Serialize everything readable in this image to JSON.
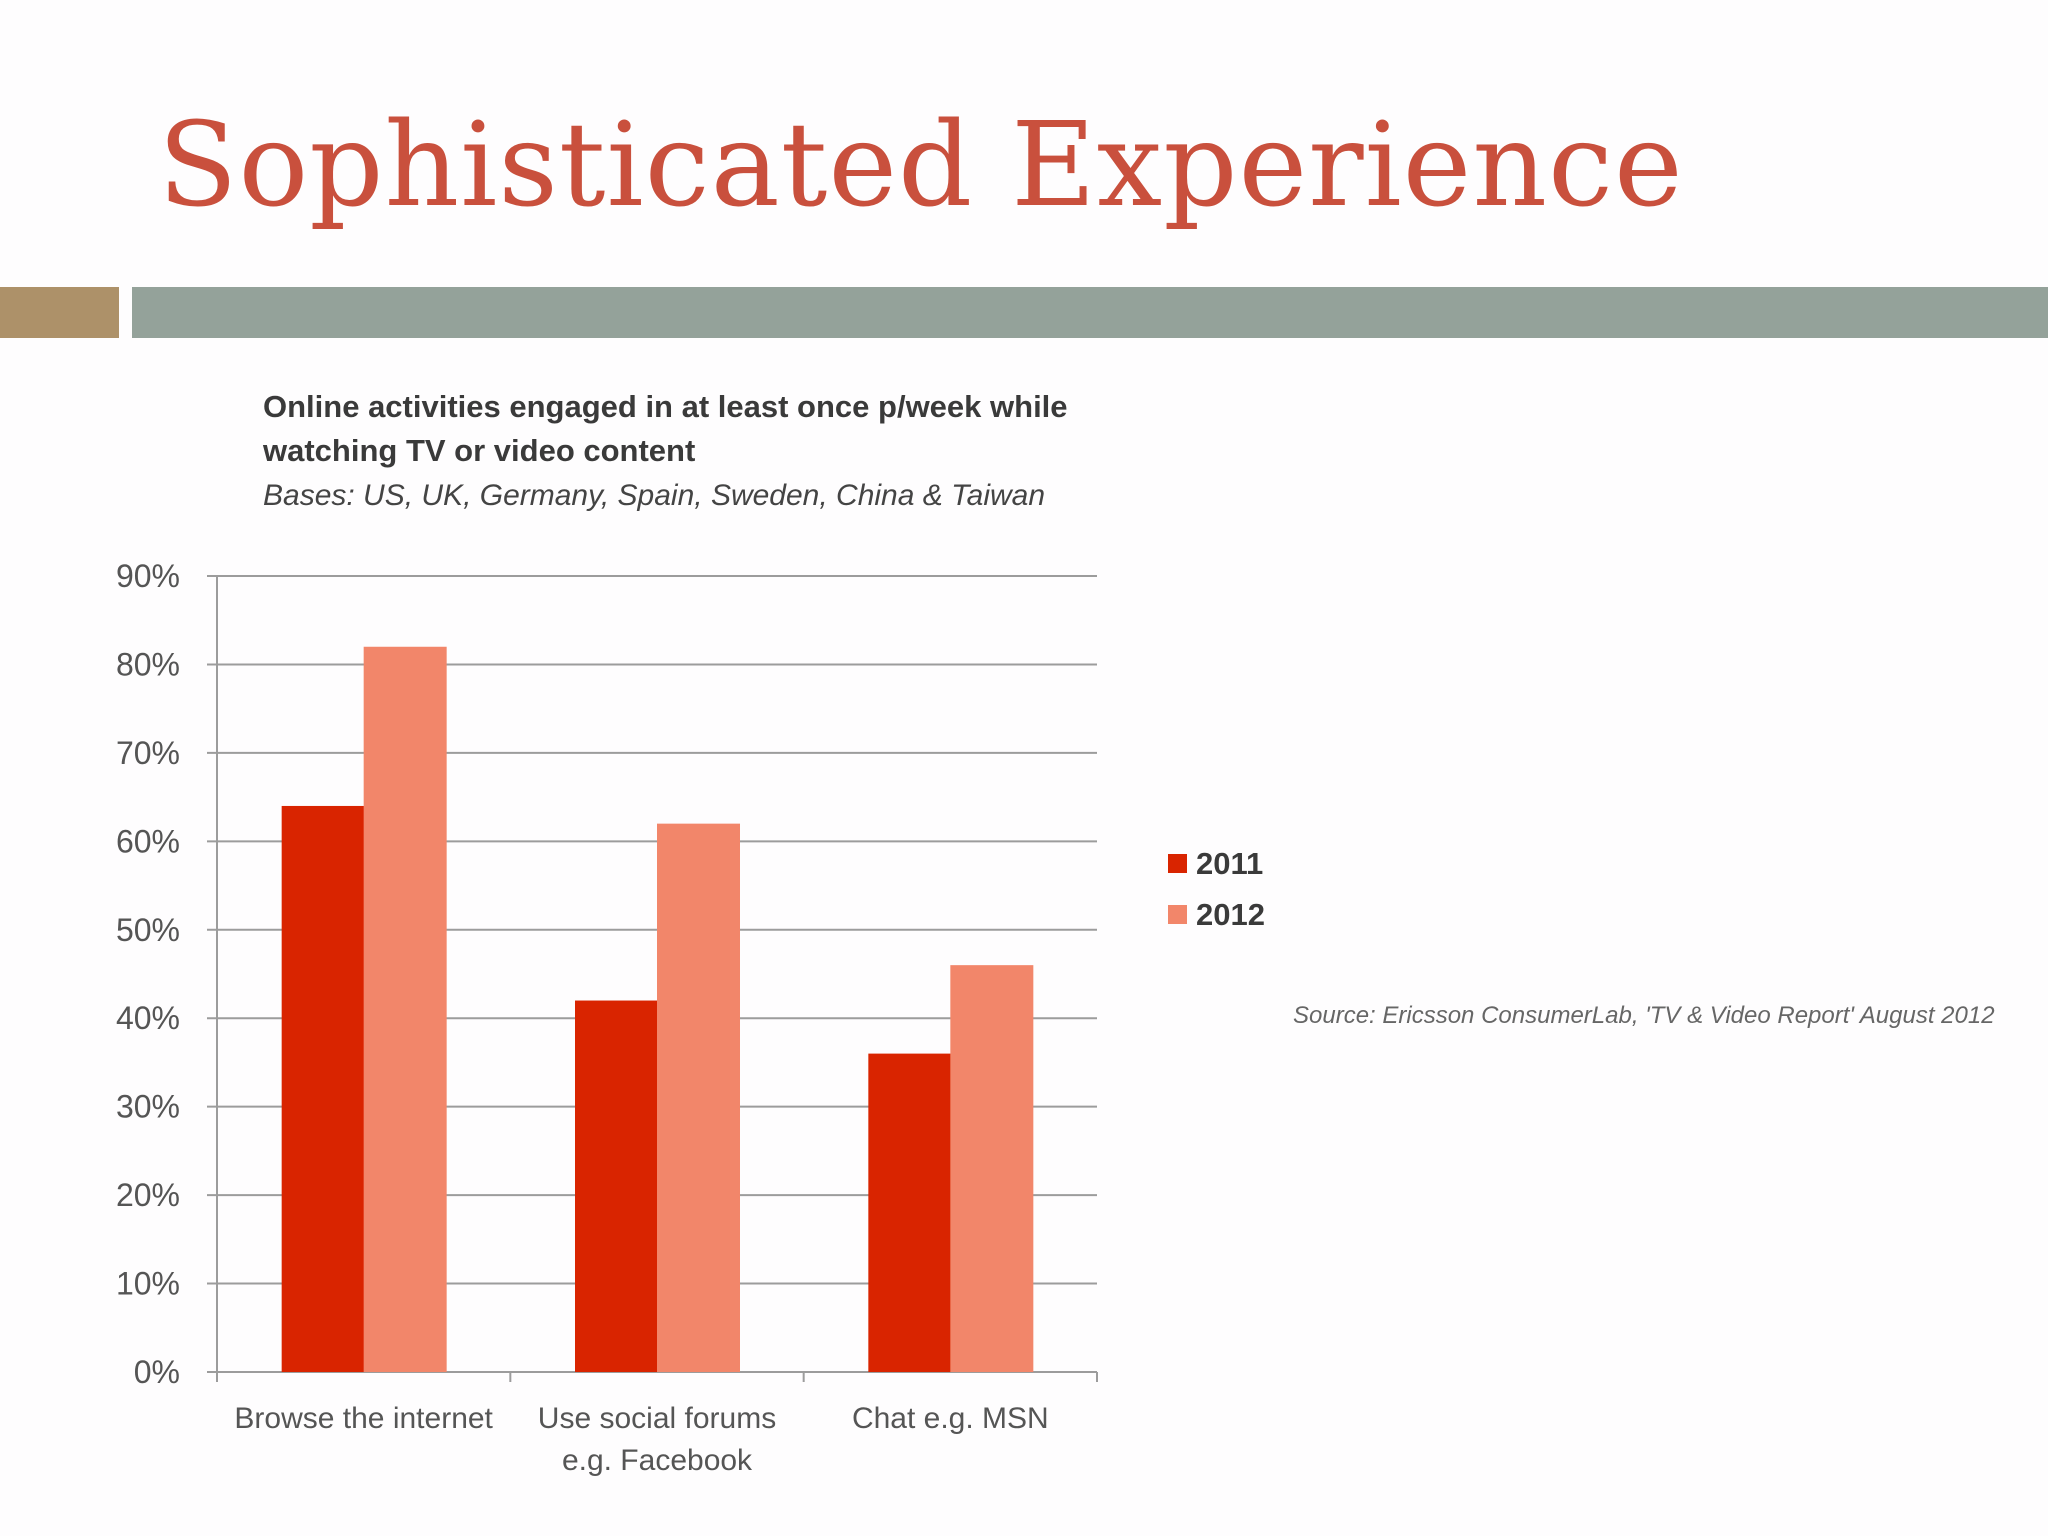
{
  "slide": {
    "title": "Sophisticated Experience",
    "source": "Source: Ericsson ConsumerLab, 'TV & Video Report' August 2012"
  },
  "colors": {
    "title": "#c9503d",
    "accent_left": "#ad9169",
    "accent_right": "#94a29a"
  },
  "chart_data": {
    "type": "bar",
    "title": "Online activities engaged in at least once p/week while watching TV or video content",
    "subtitle": "Bases: US, UK, Germany, Spain, Sweden, China & Taiwan",
    "categories": [
      [
        "Browse the internet"
      ],
      [
        "Use social forums",
        "e.g. Facebook"
      ],
      [
        "Chat e.g. MSN"
      ]
    ],
    "series": [
      {
        "name": "2011",
        "color": "#d92400",
        "values": [
          64,
          42,
          36
        ]
      },
      {
        "name": "2012",
        "color": "#f2866a",
        "values": [
          82,
          62,
          46
        ]
      }
    ],
    "ylim": [
      0,
      90
    ],
    "yticks": [
      "0%",
      "10%",
      "20%",
      "30%",
      "40%",
      "50%",
      "60%",
      "70%",
      "80%",
      "90%"
    ],
    "grid": true,
    "legend": "right"
  }
}
